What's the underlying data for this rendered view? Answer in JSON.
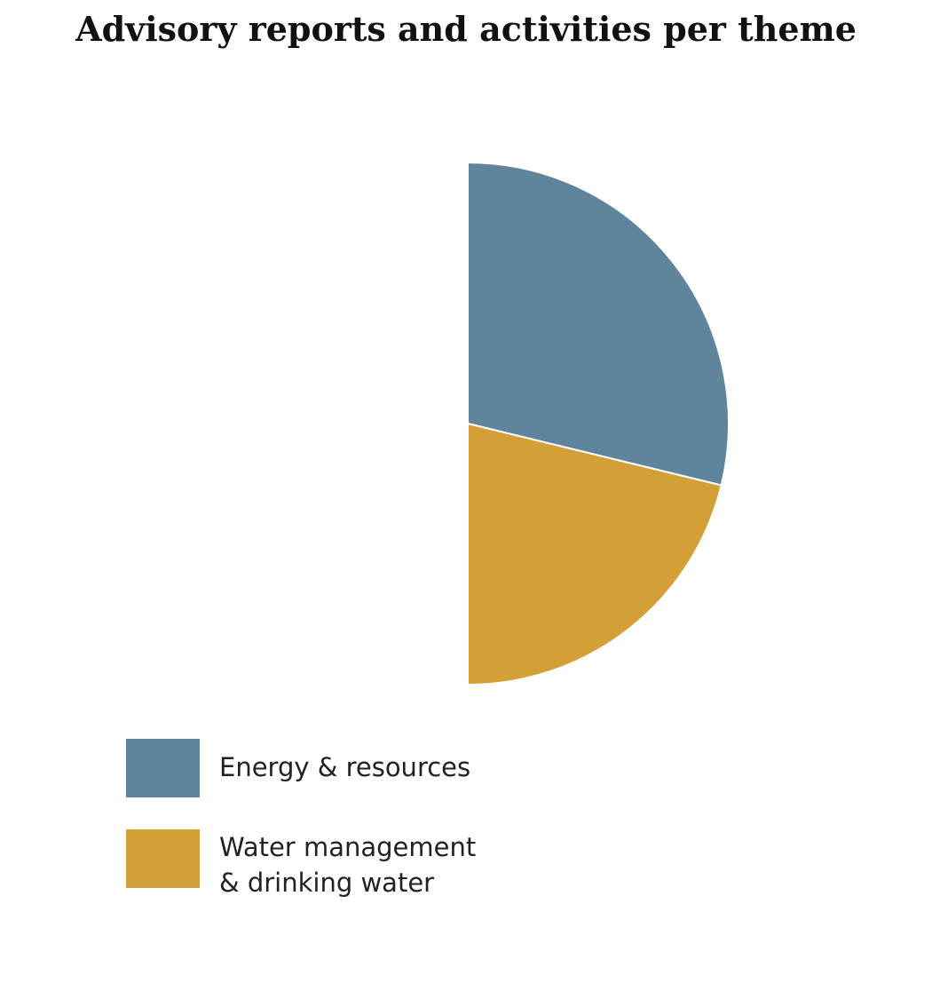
{
  "chart_data": {
    "type": "pie",
    "title": "Advisory reports and activities per theme",
    "slices": [
      {
        "name": "Energy & resources",
        "legend_text": "Energy & resources",
        "value": 28.8,
        "color": "#5f849b"
      },
      {
        "name": "Water management & drinking water",
        "legend_text": "Water management\n& drinking water",
        "value": 21.2,
        "color": "#d49f37"
      }
    ],
    "start": "12 o'clock",
    "direction": "clockwise",
    "legend_position": "bottom-left"
  }
}
